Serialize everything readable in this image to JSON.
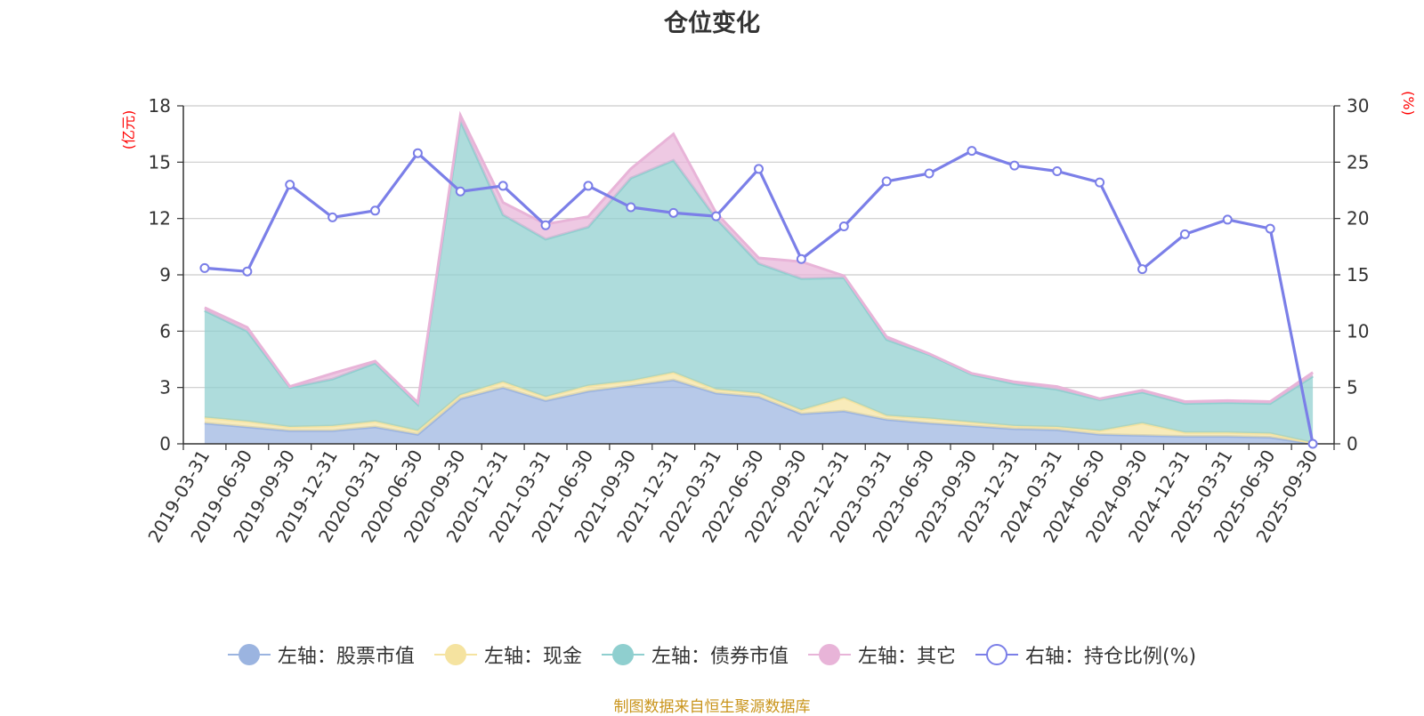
{
  "chart_data": {
    "type": "area",
    "title": "仓位变化",
    "categories": [
      "2019-03-31",
      "2019-06-30",
      "2019-09-30",
      "2019-12-31",
      "2020-03-31",
      "2020-06-30",
      "2020-09-30",
      "2020-12-31",
      "2021-03-31",
      "2021-06-30",
      "2021-09-30",
      "2021-12-31",
      "2022-03-31",
      "2022-06-30",
      "2022-09-30",
      "2022-12-31",
      "2023-03-31",
      "2023-06-30",
      "2023-09-30",
      "2023-12-31",
      "2024-03-31",
      "2024-06-30",
      "2024-09-30",
      "2024-12-31",
      "2025-03-31",
      "2025-06-30",
      "2025-09-30"
    ],
    "left_axis": {
      "label": "(亿元)",
      "ylim": [
        0,
        18
      ],
      "ticks": [
        "0",
        "3",
        "6",
        "9",
        "12",
        "15",
        "18"
      ]
    },
    "right_axis": {
      "label": "(%)",
      "ylim": [
        0,
        30
      ],
      "ticks": [
        "0",
        "5",
        "10",
        "15",
        "20",
        "25",
        "30"
      ]
    },
    "series": [
      {
        "name": "左轴：股票市值",
        "axis": "left",
        "stacked": true,
        "color": "#9bb4e0",
        "values": [
          1.1,
          0.9,
          0.7,
          0.7,
          0.9,
          0.5,
          2.4,
          3.0,
          2.3,
          2.8,
          3.1,
          3.4,
          2.7,
          2.5,
          1.6,
          1.75,
          1.3,
          1.1,
          0.95,
          0.8,
          0.75,
          0.5,
          0.45,
          0.4,
          0.4,
          0.35,
          0.0
        ]
      },
      {
        "name": "左轴：现金",
        "axis": "left",
        "stacked": true,
        "color": "#f5e3a0",
        "values": [
          0.3,
          0.3,
          0.2,
          0.25,
          0.3,
          0.2,
          0.2,
          0.3,
          0.2,
          0.3,
          0.25,
          0.4,
          0.2,
          0.2,
          0.2,
          0.7,
          0.2,
          0.25,
          0.2,
          0.15,
          0.15,
          0.2,
          0.65,
          0.2,
          0.2,
          0.2,
          0.05
        ]
      },
      {
        "name": "左轴：债券市值",
        "axis": "left",
        "stacked": true,
        "color": "#8fcfcf",
        "values": [
          5.7,
          4.8,
          2.1,
          2.5,
          3.1,
          1.4,
          14.6,
          8.9,
          8.4,
          8.45,
          10.8,
          11.3,
          9.1,
          6.9,
          7.0,
          6.4,
          4.05,
          3.4,
          2.55,
          2.25,
          2.0,
          1.65,
          1.65,
          1.55,
          1.6,
          1.6,
          3.55
        ]
      },
      {
        "name": "左轴：其它",
        "axis": "left",
        "stacked": true,
        "color": "#e8b4d8",
        "values": [
          0.15,
          0.2,
          0.05,
          0.3,
          0.1,
          0.1,
          0.3,
          0.65,
          0.8,
          0.55,
          0.5,
          1.4,
          0.3,
          0.3,
          0.9,
          0.1,
          0.15,
          0.05,
          0.05,
          0.1,
          0.15,
          0.05,
          0.1,
          0.1,
          0.1,
          0.1,
          0.2
        ]
      },
      {
        "name": "右轴：持仓比例(%)",
        "axis": "right",
        "type": "line",
        "color": "#7b7fe8",
        "values": [
          15.6,
          15.3,
          23.0,
          20.1,
          20.7,
          25.8,
          22.4,
          22.9,
          19.4,
          22.9,
          21.0,
          20.5,
          20.2,
          24.4,
          16.4,
          19.3,
          23.3,
          24.0,
          26.0,
          24.7,
          24.2,
          23.2,
          15.5,
          18.6,
          19.9,
          19.1,
          0.0
        ]
      }
    ]
  },
  "legend": {
    "items": [
      {
        "label": "左轴：股票市值",
        "color": "#9bb4e0",
        "style": "filled"
      },
      {
        "label": "左轴：现金",
        "color": "#f5e3a0",
        "style": "filled"
      },
      {
        "label": "左轴：债券市值",
        "color": "#8fcfcf",
        "style": "filled"
      },
      {
        "label": "左轴：其它",
        "color": "#e8b4d8",
        "style": "filled"
      },
      {
        "label": "右轴：持仓比例(%)",
        "color": "#7b7fe8",
        "style": "hollow"
      }
    ]
  },
  "source_note": "制图数据来自恒生聚源数据库"
}
